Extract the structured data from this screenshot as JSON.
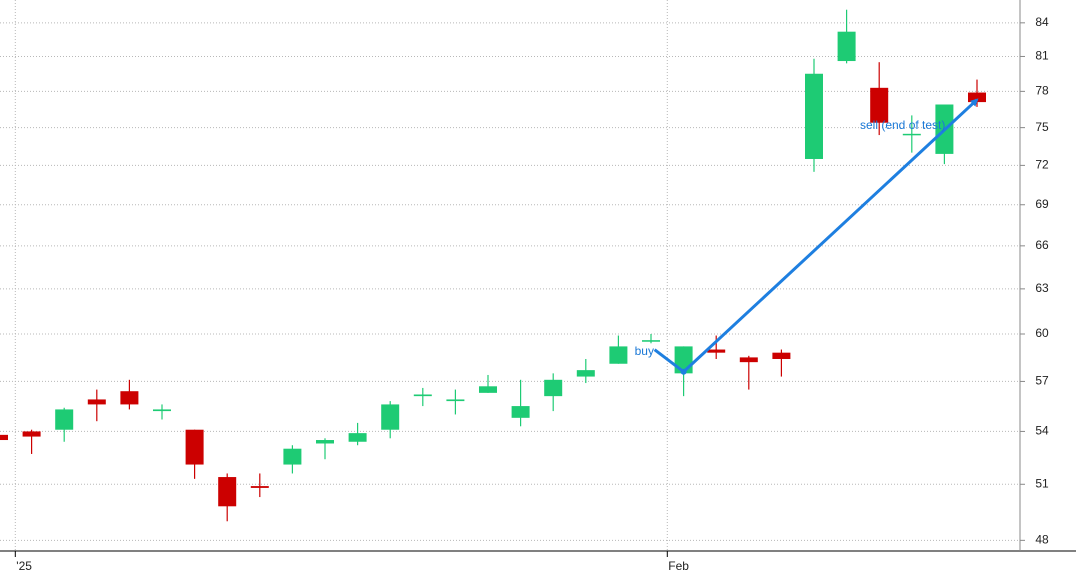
{
  "chart_data": {
    "type": "candlestick",
    "categories": [
      null,
      "'25",
      null,
      null,
      null,
      null,
      null,
      null,
      null,
      null,
      null,
      null,
      null,
      null,
      null,
      null,
      null,
      null,
      null,
      null,
      null,
      "Feb",
      null,
      null,
      null,
      null,
      null,
      null,
      null,
      null,
      null
    ],
    "open": [
      53.8,
      54.0,
      54.1,
      55.9,
      56.4,
      55.2,
      54.1,
      51.4,
      50.9,
      52.1,
      53.3,
      53.4,
      54.1,
      56.1,
      55.8,
      56.3,
      54.8,
      56.1,
      57.3,
      58.1,
      59.5,
      57.5,
      59.0,
      58.5,
      58.8,
      72.5,
      80.6,
      78.3,
      74.4,
      72.9,
      77.9
    ],
    "high": [
      53.8,
      54.1,
      55.4,
      56.5,
      57.1,
      55.6,
      54.1,
      51.6,
      51.6,
      53.2,
      53.6,
      54.5,
      55.8,
      56.6,
      56.5,
      57.4,
      57.1,
      57.5,
      58.4,
      59.9,
      60.0,
      59.2,
      59.9,
      58.6,
      59.0,
      80.8,
      85.2,
      80.5,
      76.0,
      76.9,
      79.0
    ],
    "low": [
      53.5,
      52.7,
      53.4,
      54.6,
      55.3,
      54.7,
      51.3,
      49.0,
      50.3,
      51.6,
      52.4,
      53.2,
      53.6,
      55.5,
      55.0,
      56.3,
      54.3,
      55.2,
      56.9,
      58.1,
      59.4,
      56.1,
      58.4,
      56.5,
      57.3,
      71.5,
      80.4,
      74.4,
      73.0,
      72.1,
      76.7
    ],
    "close": [
      53.5,
      53.7,
      55.3,
      55.6,
      55.6,
      55.3,
      52.1,
      49.8,
      50.8,
      53.0,
      53.5,
      53.9,
      55.6,
      56.2,
      55.9,
      56.7,
      55.5,
      57.1,
      57.7,
      59.2,
      59.6,
      59.2,
      58.8,
      58.2,
      58.4,
      79.5,
      83.2,
      75.4,
      74.5,
      76.9,
      77.1
    ],
    "up_color": "#1ecb74",
    "down_color": "#cc0000",
    "log_scale": true,
    "ylim": [
      47.45,
      86.1
    ],
    "yticks": [
      48,
      51,
      54,
      57,
      60,
      63,
      66,
      69,
      72,
      75,
      78,
      81,
      84
    ],
    "grid": true,
    "annotations": [
      {
        "text": "buy",
        "index": 21,
        "price": 57.6
      },
      {
        "text": "sell (end of test)",
        "index": 30,
        "price": 77.3
      }
    ],
    "annotation_color": "#1e7fe0"
  }
}
